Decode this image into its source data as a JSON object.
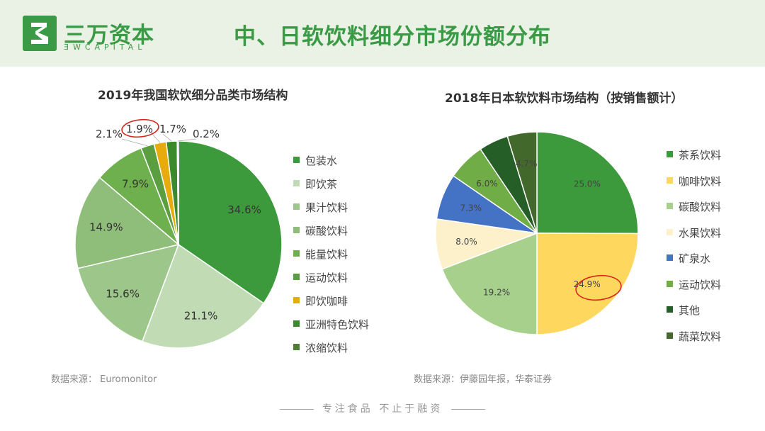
{
  "header": {
    "logo_cn": "三万资本",
    "logo_en": "ƎWCAPITAL",
    "title": "中、日软饮料细分市场份额分布"
  },
  "chart1": {
    "title": "2019年我国软饮细分品类市场结构",
    "source": "数据来源： Euromonitor"
  },
  "chart2": {
    "title": "2018年日本软饮料市场结构（按销售额计）",
    "source": "数据来源：伊藤园年报，华泰证券"
  },
  "footer": {
    "slogan": "专注食品  不止于融资"
  },
  "chart_data": [
    {
      "type": "pie",
      "title": "2019年我国软饮细分品类市场结构",
      "categories": [
        "包装水",
        "即饮茶",
        "果汁饮料",
        "碳酸饮料",
        "能量饮料",
        "运动饮料",
        "即饮咖啡",
        "亚洲特色饮料",
        "浓缩饮料"
      ],
      "values": [
        34.6,
        21.1,
        15.6,
        14.9,
        7.9,
        2.1,
        1.9,
        1.7,
        0.2
      ],
      "labels": [
        "34.6%",
        "21.1%",
        "15.6%",
        "14.9%",
        "7.9%",
        "2.1%",
        "1.9%",
        "1.7%",
        "0.2%"
      ],
      "colors": [
        "#3d9a3c",
        "#c1dcb4",
        "#9dc78a",
        "#8fbe7a",
        "#6fb04e",
        "#5a9e40",
        "#e8ab0c",
        "#3b8a2c",
        "#4e7d36"
      ],
      "legend": "right",
      "highlight": "1.9%"
    },
    {
      "type": "pie",
      "title": "2018年日本软饮料市场结构（按销售额计）",
      "categories": [
        "茶系饮料",
        "咖啡饮料",
        "碳酸饮料",
        "水果饮料",
        "矿泉水",
        "运动饮料",
        "其他",
        "蔬菜饮料"
      ],
      "values": [
        25.0,
        24.9,
        19.2,
        8.0,
        7.3,
        6.0,
        4.7,
        4.7
      ],
      "labels": [
        "25.0%",
        "24.9%",
        "19.2%",
        "8.0%",
        "7.3%",
        "6.0%",
        "",
        "4.7%"
      ],
      "colors": [
        "#3d9a3c",
        "#fed85e",
        "#a8d08d",
        "#fdf1cc",
        "#4472c4",
        "#70ad47",
        "#255e26",
        "#43682b"
      ],
      "legend": "right",
      "highlight": "24.9%"
    }
  ]
}
